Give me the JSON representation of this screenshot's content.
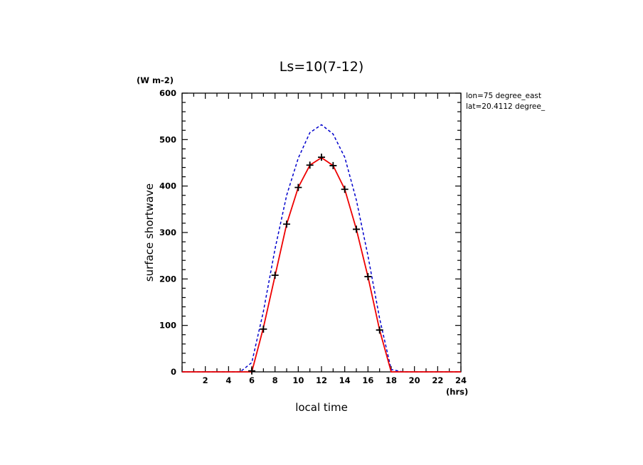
{
  "chart_data": {
    "type": "line",
    "title": "Ls=10(7-12)",
    "xlabel": "local time",
    "ylabel": "surface shortwave",
    "y_unit": "(W m-2)",
    "x_unit": "(hrs)",
    "annotations": [
      "lon=75 degree_east",
      "lat=20.4112 degree_"
    ],
    "xlim": [
      0,
      24
    ],
    "ylim": [
      0,
      600
    ],
    "x_ticks": [
      2,
      4,
      6,
      8,
      10,
      12,
      14,
      16,
      18,
      20,
      22,
      24
    ],
    "y_ticks": [
      0,
      100,
      200,
      300,
      400,
      500,
      600
    ],
    "grid": false,
    "series": [
      {
        "style": "dashed",
        "color": "#0000cc",
        "x": [
          0,
          1,
          2,
          3,
          4,
          5,
          6,
          7,
          8,
          9,
          10,
          11,
          12,
          13,
          14,
          15,
          16,
          17,
          18,
          19,
          20,
          21,
          22,
          23,
          24
        ],
        "values": [
          0,
          0,
          0,
          0,
          0,
          0,
          20,
          130,
          265,
          380,
          460,
          515,
          532,
          512,
          462,
          370,
          250,
          115,
          5,
          0,
          0,
          0,
          0,
          0,
          0
        ]
      },
      {
        "style": "solid",
        "color": "#ee0000",
        "x": [
          0,
          1,
          2,
          3,
          4,
          5,
          6,
          7,
          8,
          9,
          10,
          11,
          12,
          13,
          14,
          15,
          16,
          17,
          18,
          19,
          20,
          21,
          22,
          23,
          24
        ],
        "values": [
          0,
          0,
          0,
          0,
          0,
          0,
          0,
          95,
          207,
          318,
          397,
          445,
          461,
          444,
          393,
          307,
          205,
          90,
          0,
          0,
          0,
          0,
          0,
          0,
          0
        ]
      },
      {
        "style": "markers",
        "marker": "+",
        "color": "#000000",
        "x": [
          6,
          7,
          8,
          9,
          10,
          11,
          12,
          13,
          14,
          15,
          16,
          17
        ],
        "values": [
          2,
          92,
          208,
          318,
          397,
          445,
          462,
          444,
          393,
          307,
          205,
          90
        ]
      }
    ]
  }
}
